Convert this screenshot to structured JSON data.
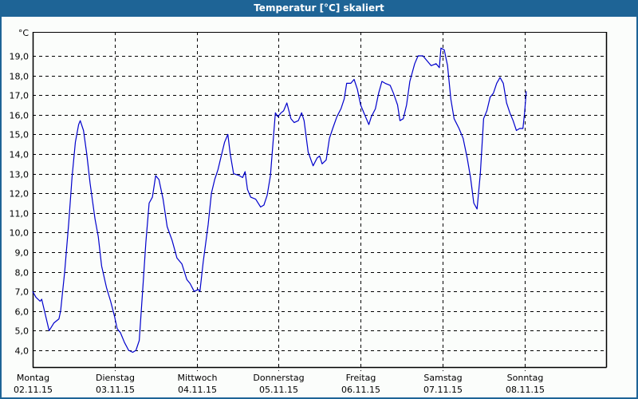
{
  "window": {
    "title": "Temperatur [°C] skaliert"
  },
  "colors": {
    "titlebar": "#1e6496",
    "background": "#fbfdfb",
    "line": "#0000cc",
    "grid": "#000000"
  },
  "chart_data": {
    "type": "line",
    "title": "Temperatur [°C] skaliert",
    "ylabel": "°C",
    "xlabel": "",
    "ylim": [
      3.0,
      20.2
    ],
    "grid": true,
    "grid_style": "dashed",
    "legend": null,
    "y_ticks": [
      "4,0",
      "5,0",
      "6,0",
      "7,0",
      "8,0",
      "9,0",
      "10,0",
      "11,0",
      "12,0",
      "13,0",
      "14,0",
      "15,0",
      "16,0",
      "17,0",
      "18,0",
      "19,0"
    ],
    "x_ticks": [
      {
        "day": "Montag",
        "date": "02.11.15"
      },
      {
        "day": "Dienstag",
        "date": "03.11.15"
      },
      {
        "day": "Mittwoch",
        "date": "04.11.15"
      },
      {
        "day": "Donnerstag",
        "date": "05.11.15"
      },
      {
        "day": "Freitag",
        "date": "06.11.15"
      },
      {
        "day": "Samstag",
        "date": "07.11.15"
      },
      {
        "day": "Sonntag",
        "date": "08.11.15"
      }
    ],
    "x_unit": "days since 02.11.15 00:00",
    "series": [
      {
        "name": "Temperatur",
        "points": [
          [
            0.0,
            7.0
          ],
          [
            0.04,
            6.7
          ],
          [
            0.09,
            6.5
          ],
          [
            0.11,
            6.6
          ],
          [
            0.2,
            5.0
          ],
          [
            0.26,
            5.4
          ],
          [
            0.32,
            5.6
          ],
          [
            0.34,
            6.0
          ],
          [
            0.39,
            8.0
          ],
          [
            0.44,
            10.5
          ],
          [
            0.48,
            12.8
          ],
          [
            0.52,
            14.6
          ],
          [
            0.56,
            15.5
          ],
          [
            0.58,
            15.7
          ],
          [
            0.62,
            15.2
          ],
          [
            0.66,
            14.0
          ],
          [
            0.7,
            12.5
          ],
          [
            0.76,
            10.7
          ],
          [
            0.8,
            9.8
          ],
          [
            0.84,
            8.3
          ],
          [
            0.9,
            7.2
          ],
          [
            0.95,
            6.5
          ],
          [
            1.0,
            5.7
          ],
          [
            1.03,
            5.1
          ],
          [
            1.07,
            4.9
          ],
          [
            1.12,
            4.4
          ],
          [
            1.17,
            4.0
          ],
          [
            1.22,
            3.9
          ],
          [
            1.26,
            4.0
          ],
          [
            1.3,
            4.5
          ],
          [
            1.34,
            7.0
          ],
          [
            1.38,
            9.5
          ],
          [
            1.42,
            11.5
          ],
          [
            1.46,
            11.8
          ],
          [
            1.5,
            12.9
          ],
          [
            1.54,
            12.7
          ],
          [
            1.59,
            11.7
          ],
          [
            1.64,
            10.3
          ],
          [
            1.7,
            9.6
          ],
          [
            1.76,
            8.7
          ],
          [
            1.82,
            8.4
          ],
          [
            1.88,
            7.6
          ],
          [
            1.92,
            7.4
          ],
          [
            1.97,
            7.0
          ],
          [
            2.02,
            7.1
          ],
          [
            2.04,
            7.0
          ],
          [
            2.08,
            8.5
          ],
          [
            2.14,
            10.4
          ],
          [
            2.18,
            12.0
          ],
          [
            2.22,
            12.7
          ],
          [
            2.26,
            13.2
          ],
          [
            2.3,
            13.9
          ],
          [
            2.34,
            14.6
          ],
          [
            2.38,
            15.0
          ],
          [
            2.41,
            14.0
          ],
          [
            2.45,
            13.0
          ],
          [
            2.52,
            12.9
          ],
          [
            2.56,
            12.8
          ],
          [
            2.59,
            13.1
          ],
          [
            2.62,
            12.2
          ],
          [
            2.66,
            11.8
          ],
          [
            2.72,
            11.7
          ],
          [
            2.78,
            11.3
          ],
          [
            2.82,
            11.4
          ],
          [
            2.86,
            11.9
          ],
          [
            2.9,
            12.9
          ],
          [
            2.93,
            14.5
          ],
          [
            2.96,
            16.1
          ],
          [
            2.99,
            15.9
          ],
          [
            3.03,
            16.1
          ],
          [
            3.06,
            16.2
          ],
          [
            3.1,
            16.6
          ],
          [
            3.15,
            15.8
          ],
          [
            3.19,
            15.6
          ],
          [
            3.24,
            15.7
          ],
          [
            3.28,
            16.1
          ],
          [
            3.31,
            15.7
          ],
          [
            3.36,
            14.1
          ],
          [
            3.42,
            13.4
          ],
          [
            3.47,
            13.8
          ],
          [
            3.5,
            13.9
          ],
          [
            3.53,
            13.5
          ],
          [
            3.58,
            13.7
          ],
          [
            3.62,
            14.8
          ],
          [
            3.66,
            15.3
          ],
          [
            3.71,
            15.9
          ],
          [
            3.76,
            16.3
          ],
          [
            3.8,
            16.8
          ],
          [
            3.83,
            17.6
          ],
          [
            3.88,
            17.6
          ],
          [
            3.92,
            17.8
          ],
          [
            3.96,
            17.3
          ],
          [
            4.0,
            16.5
          ],
          [
            4.05,
            16.0
          ],
          [
            4.1,
            15.5
          ],
          [
            4.13,
            15.9
          ],
          [
            4.18,
            16.3
          ],
          [
            4.22,
            17.1
          ],
          [
            4.26,
            17.7
          ],
          [
            4.3,
            17.6
          ],
          [
            4.36,
            17.5
          ],
          [
            4.4,
            17.1
          ],
          [
            4.45,
            16.5
          ],
          [
            4.48,
            15.7
          ],
          [
            4.52,
            15.8
          ],
          [
            4.56,
            16.5
          ],
          [
            4.6,
            17.7
          ],
          [
            4.66,
            18.6
          ],
          [
            4.7,
            19.0
          ],
          [
            4.76,
            19.0
          ],
          [
            4.82,
            18.7
          ],
          [
            4.86,
            18.5
          ],
          [
            4.92,
            18.6
          ],
          [
            4.96,
            18.4
          ],
          [
            4.98,
            19.4
          ],
          [
            5.02,
            19.3
          ],
          [
            5.06,
            18.5
          ],
          [
            5.1,
            16.8
          ],
          [
            5.14,
            15.8
          ],
          [
            5.2,
            15.3
          ],
          [
            5.25,
            14.8
          ],
          [
            5.3,
            13.8
          ],
          [
            5.34,
            12.8
          ],
          [
            5.38,
            11.5
          ],
          [
            5.42,
            11.2
          ],
          [
            5.46,
            13.0
          ],
          [
            5.5,
            15.8
          ],
          [
            5.54,
            16.2
          ],
          [
            5.58,
            16.9
          ],
          [
            5.62,
            17.1
          ],
          [
            5.66,
            17.6
          ],
          [
            5.7,
            17.9
          ],
          [
            5.74,
            17.6
          ],
          [
            5.78,
            16.6
          ],
          [
            5.82,
            16.1
          ],
          [
            5.86,
            15.7
          ],
          [
            5.9,
            15.2
          ],
          [
            5.94,
            15.3
          ],
          [
            5.98,
            15.3
          ],
          [
            6.0,
            16.1
          ],
          [
            6.02,
            17.2
          ]
        ]
      }
    ]
  }
}
